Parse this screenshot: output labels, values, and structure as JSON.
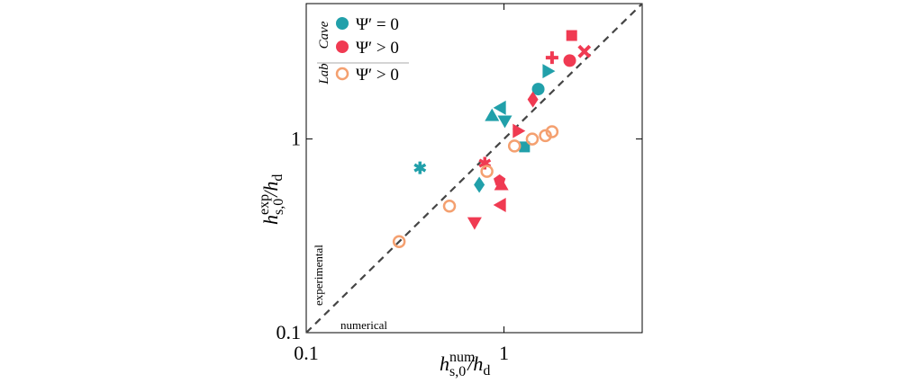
{
  "chart_data": {
    "type": "scatter",
    "log_x": true,
    "log_y": true,
    "xlim": [
      0.1,
      5
    ],
    "ylim": [
      0.1,
      5
    ],
    "xticks": [
      0.1,
      1
    ],
    "yticks": [
      0.1,
      1
    ],
    "x_label": {
      "base": "h",
      "sup": "num",
      "sub": "s,0",
      "rest": "/h",
      "rest_sub": "d"
    },
    "y_label": {
      "base": "h",
      "sup": "exp",
      "sub": "s,0",
      "rest": "/h",
      "rest_sub": "d"
    },
    "identity_line": true,
    "annotations": {
      "upper": "experimental",
      "lower": "numerical"
    },
    "legend_groups": [
      {
        "label": "Cave",
        "series": [
          0,
          1
        ]
      },
      {
        "label": "Lab",
        "series": [
          2
        ]
      }
    ],
    "series": [
      {
        "name": "Ψ′ = 0",
        "color": "#21a0aa",
        "legend_marker": "circle",
        "markers": [
          "circle",
          "triangle-right",
          "triangle-left",
          "triangle-up",
          "triangle-down",
          "square",
          "asterisk",
          "diamond"
        ],
        "x": [
          1.49,
          1.67,
          0.96,
          0.87,
          1.01,
          1.27,
          0.376,
          0.75
        ],
        "values": [
          1.81,
          2.24,
          1.45,
          1.32,
          1.24,
          0.91,
          0.71,
          0.58
        ]
      },
      {
        "name": "Ψ′ > 0",
        "color": "#f03a52",
        "legend_marker": "circle",
        "markers": [
          "square",
          "cross",
          "plus",
          "circle",
          "diamond",
          "triangle-right",
          "asterisk",
          "pentagon",
          "triangle-up",
          "triangle-left",
          "triangle-down"
        ],
        "x": [
          2.2,
          2.55,
          1.75,
          2.15,
          1.4,
          1.18,
          0.8,
          0.95,
          0.97,
          0.96,
          0.71
        ],
        "values": [
          3.42,
          2.83,
          2.63,
          2.54,
          1.6,
          1.1,
          0.75,
          0.61,
          0.58,
          0.456,
          0.37
        ]
      },
      {
        "name": "Ψ′ > 0",
        "color": "#f4a070",
        "legend_marker": "circle-open",
        "markers": [
          "circle-open",
          "circle-open",
          "circle-open",
          "circle-open",
          "circle-open",
          "circle-open",
          "circle-open"
        ],
        "x": [
          0.295,
          0.53,
          0.82,
          1.13,
          1.39,
          1.62,
          1.75
        ],
        "values": [
          0.295,
          0.45,
          0.68,
          0.92,
          1.0,
          1.04,
          1.09
        ]
      }
    ]
  }
}
